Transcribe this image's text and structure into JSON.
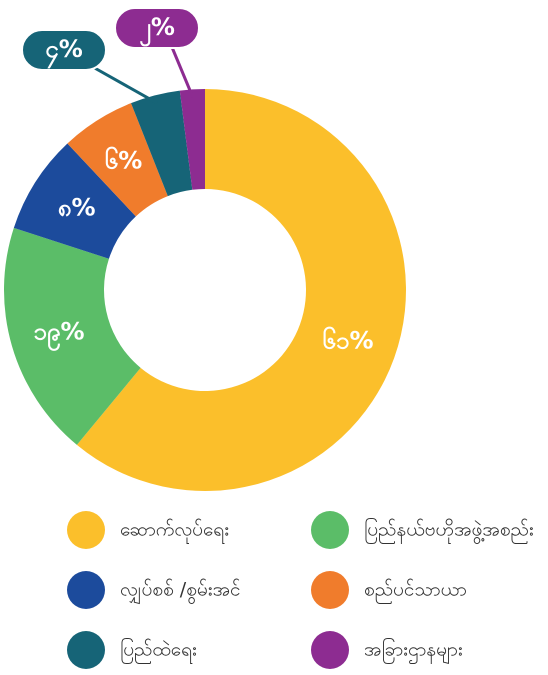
{
  "chart_data": {
    "type": "donut",
    "categories": [
      "ဆောက်လုပ်ရေး",
      "ပြည်နယ်ဗဟိုအဖွဲ့အစည်း",
      "လျှပ်စစ် /စွမ်းအင်",
      "စည်ပင်သာယာ",
      "ပြည်ထဲရေး",
      "အခြားဌာနများ"
    ],
    "values": [
      61,
      19,
      8,
      6,
      4,
      2
    ],
    "value_labels": [
      "၆၁%",
      "၁၉%",
      "၈%",
      "၆%",
      "၄%",
      "၂%"
    ],
    "colors": [
      "#FBBF2B",
      "#5BBD68",
      "#1C4B9C",
      "#F07C2C",
      "#166477",
      "#8D2C91"
    ]
  }
}
